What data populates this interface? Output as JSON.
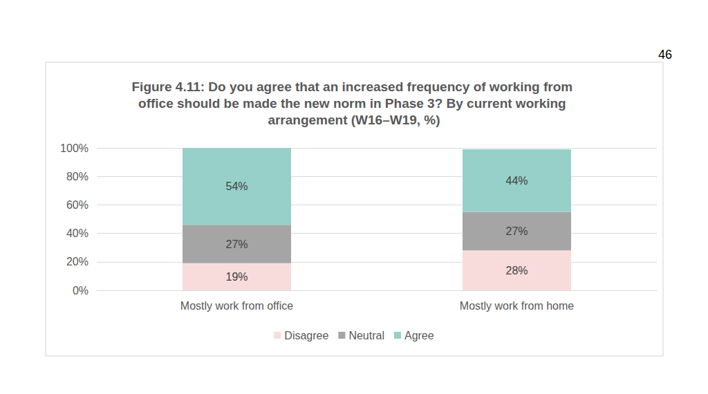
{
  "chart_data": {
    "type": "bar",
    "title": "Figure 4.11: Do you agree that an increased frequency of working from office should be made the new norm in Phase 3? By current working arrangement (W16–W19, %)",
    "annotations": [
      "46"
    ],
    "categories": [
      "Mostly work from office",
      "Mostly work from home"
    ],
    "series": [
      {
        "name": "Disagree",
        "color": "#f8dcdc",
        "values": [
          19,
          28
        ],
        "value_labels": [
          "19%",
          "28%"
        ]
      },
      {
        "name": "Neutral",
        "color": "#a5a5a5",
        "values": [
          27,
          27
        ],
        "value_labels": [
          "27%",
          "27%"
        ]
      },
      {
        "name": "Agree",
        "color": "#96d0c8",
        "values": [
          54,
          44
        ],
        "value_labels": [
          "54%",
          "44%"
        ]
      }
    ],
    "ylim": [
      0,
      100
    ],
    "yticks": [
      {
        "value": 0,
        "label": "0%"
      },
      {
        "value": 20,
        "label": "20%"
      },
      {
        "value": 40,
        "label": "40%"
      },
      {
        "value": 60,
        "label": "60%"
      },
      {
        "value": 80,
        "label": "80%"
      },
      {
        "value": 100,
        "label": "100%"
      }
    ],
    "stacked": true,
    "data_labels": true,
    "legend": "bottom",
    "grid": true
  }
}
